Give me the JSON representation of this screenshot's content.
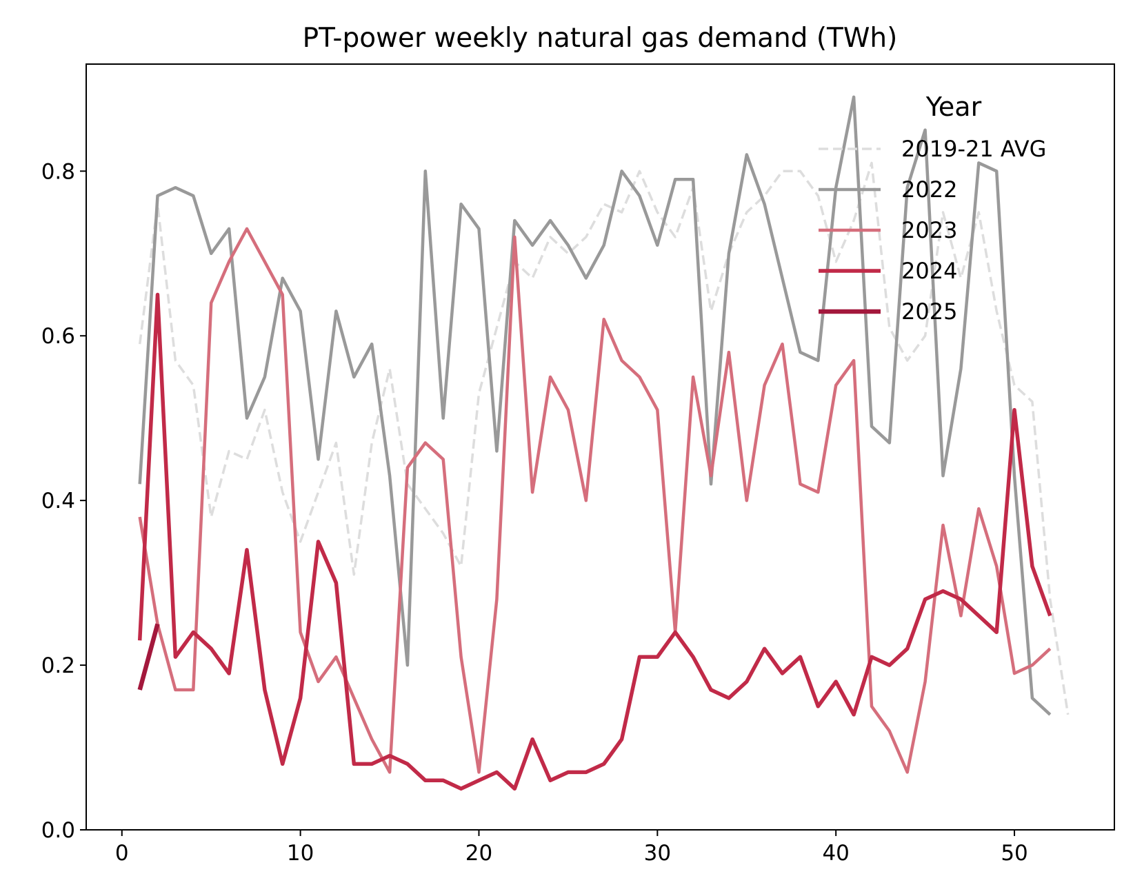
{
  "chart_data": {
    "type": "line",
    "title": "PT-power weekly natural gas demand (TWh)",
    "xlabel": "",
    "ylabel": "",
    "xlim": [
      -2,
      55.6
    ],
    "ylim": [
      0,
      0.93
    ],
    "xticks": [
      0,
      10,
      20,
      30,
      40,
      50
    ],
    "yticks": [
      0.0,
      0.2,
      0.4,
      0.6,
      0.8
    ],
    "xtick_labels": [
      "0",
      "10",
      "20",
      "30",
      "40",
      "50"
    ],
    "ytick_labels": [
      "0.0",
      "0.2",
      "0.4",
      "0.6",
      "0.8"
    ],
    "grid": false,
    "legend": {
      "title": "Year",
      "placement": "top-right"
    },
    "series": [
      {
        "name": "2019-21 AVG",
        "color": "#dddddd",
        "style": "dashed",
        "x": [
          1,
          2,
          3,
          4,
          5,
          6,
          7,
          8,
          9,
          10,
          11,
          12,
          13,
          14,
          15,
          16,
          17,
          18,
          19,
          20,
          21,
          22,
          23,
          24,
          25,
          26,
          27,
          28,
          29,
          30,
          31,
          32,
          33,
          34,
          35,
          36,
          37,
          38,
          39,
          40,
          41,
          42,
          43,
          44,
          45,
          46,
          47,
          48,
          49,
          50,
          51,
          52,
          53
        ],
        "values": [
          0.59,
          0.76,
          0.57,
          0.54,
          0.38,
          0.46,
          0.45,
          0.51,
          0.41,
          0.35,
          0.41,
          0.47,
          0.31,
          0.47,
          0.56,
          0.42,
          0.39,
          0.36,
          0.32,
          0.53,
          0.61,
          0.69,
          0.67,
          0.72,
          0.7,
          0.72,
          0.76,
          0.75,
          0.8,
          0.75,
          0.72,
          0.78,
          0.63,
          0.7,
          0.75,
          0.77,
          0.8,
          0.8,
          0.77,
          0.69,
          0.74,
          0.81,
          0.61,
          0.57,
          0.6,
          0.75,
          0.67,
          0.75,
          0.63,
          0.54,
          0.52,
          0.28,
          0.14
        ]
      },
      {
        "name": "2022",
        "color": "#999999",
        "style": "solid",
        "x": [
          1,
          2,
          3,
          4,
          5,
          6,
          7,
          8,
          9,
          10,
          11,
          12,
          13,
          14,
          15,
          16,
          17,
          18,
          19,
          20,
          21,
          22,
          23,
          24,
          25,
          26,
          27,
          28,
          29,
          30,
          31,
          32,
          33,
          34,
          35,
          36,
          37,
          38,
          39,
          40,
          41,
          42,
          43,
          44,
          45,
          46,
          47,
          48,
          49,
          50,
          51,
          52
        ],
        "values": [
          0.42,
          0.77,
          0.78,
          0.77,
          0.7,
          0.73,
          0.5,
          0.55,
          0.67,
          0.63,
          0.45,
          0.63,
          0.55,
          0.59,
          0.43,
          0.2,
          0.8,
          0.5,
          0.76,
          0.73,
          0.46,
          0.74,
          0.71,
          0.74,
          0.71,
          0.67,
          0.71,
          0.8,
          0.77,
          0.71,
          0.79,
          0.79,
          0.42,
          0.7,
          0.82,
          0.76,
          0.67,
          0.58,
          0.57,
          0.78,
          0.89,
          0.49,
          0.47,
          0.78,
          0.85,
          0.43,
          0.56,
          0.81,
          0.8,
          0.43,
          0.16,
          0.14
        ]
      },
      {
        "name": "2023",
        "color": "#d56e7c",
        "style": "solid",
        "x": [
          1,
          2,
          3,
          4,
          5,
          6,
          7,
          8,
          9,
          10,
          11,
          12,
          13,
          14,
          15,
          16,
          17,
          18,
          19,
          20,
          21,
          22,
          23,
          24,
          25,
          26,
          27,
          28,
          29,
          30,
          31,
          32,
          33,
          34,
          35,
          36,
          37,
          38,
          39,
          40,
          41,
          42,
          43,
          44,
          45,
          46,
          47,
          48,
          49,
          50,
          51,
          52
        ],
        "values": [
          0.38,
          0.25,
          0.17,
          0.17,
          0.64,
          0.69,
          0.73,
          0.69,
          0.65,
          0.24,
          0.18,
          0.21,
          0.16,
          0.11,
          0.07,
          0.44,
          0.47,
          0.45,
          0.21,
          0.07,
          0.28,
          0.72,
          0.41,
          0.55,
          0.51,
          0.4,
          0.62,
          0.57,
          0.55,
          0.51,
          0.24,
          0.55,
          0.43,
          0.58,
          0.4,
          0.54,
          0.59,
          0.42,
          0.41,
          0.54,
          0.57,
          0.15,
          0.12,
          0.07,
          0.18,
          0.37,
          0.26,
          0.39,
          0.32,
          0.19,
          0.2,
          0.22
        ]
      },
      {
        "name": "2024",
        "color": "#c12a48",
        "style": "solid",
        "x": [
          1,
          2,
          3,
          4,
          5,
          6,
          7,
          8,
          9,
          10,
          11,
          12,
          13,
          14,
          15,
          16,
          17,
          18,
          19,
          20,
          21,
          22,
          23,
          24,
          25,
          26,
          27,
          28,
          29,
          30,
          31,
          32,
          33,
          34,
          35,
          36,
          37,
          38,
          39,
          40,
          41,
          42,
          43,
          44,
          45,
          46,
          47,
          48,
          49,
          50,
          51,
          52
        ],
        "values": [
          0.23,
          0.65,
          0.21,
          0.24,
          0.22,
          0.19,
          0.34,
          0.17,
          0.08,
          0.16,
          0.35,
          0.3,
          0.08,
          0.08,
          0.09,
          0.08,
          0.06,
          0.06,
          0.05,
          0.06,
          0.07,
          0.05,
          0.11,
          0.06,
          0.07,
          0.07,
          0.08,
          0.11,
          0.21,
          0.21,
          0.24,
          0.21,
          0.17,
          0.16,
          0.18,
          0.22,
          0.19,
          0.21,
          0.15,
          0.18,
          0.14,
          0.21,
          0.2,
          0.22,
          0.28,
          0.29,
          0.28,
          0.26,
          0.24,
          0.51,
          0.32,
          0.26
        ]
      },
      {
        "name": "2025",
        "color": "#a3183c",
        "style": "solid",
        "x": [
          1,
          2
        ],
        "values": [
          0.17,
          0.25
        ]
      }
    ]
  }
}
